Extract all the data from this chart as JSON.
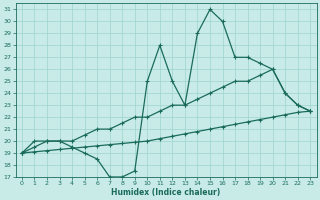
{
  "xlabel": "Humidex (Indice chaleur)",
  "bg_color": "#c8ebe8",
  "grid_color": "#9dd4cf",
  "line_color": "#1a6b5a",
  "x_hours": [
    0,
    1,
    2,
    3,
    4,
    5,
    6,
    7,
    8,
    9,
    10,
    11,
    12,
    13,
    14,
    15,
    16,
    17,
    18,
    19,
    20,
    21,
    22,
    23
  ],
  "humidex": [
    19,
    20,
    20,
    20,
    19.5,
    19,
    18.5,
    17,
    17,
    17.5,
    25,
    28,
    25,
    23,
    29,
    31,
    30,
    27,
    27,
    26.5,
    26,
    24,
    23,
    22.5
  ],
  "upper_line": [
    19,
    19.5,
    20,
    20,
    20,
    20.5,
    21,
    21,
    21.5,
    22,
    22,
    22.5,
    23,
    23,
    23.5,
    24,
    24.5,
    25,
    25,
    25.5,
    26,
    24,
    23,
    22.5
  ],
  "lower_line": [
    19,
    19.1,
    19.2,
    19.3,
    19.4,
    19.5,
    19.6,
    19.7,
    19.8,
    19.9,
    20.0,
    20.2,
    20.4,
    20.6,
    20.8,
    21.0,
    21.2,
    21.4,
    21.6,
    21.8,
    22.0,
    22.2,
    22.4,
    22.5
  ],
  "ylim": [
    17,
    31.5
  ],
  "xlim": [
    -0.5,
    23.5
  ],
  "yticks": [
    17,
    18,
    19,
    20,
    21,
    22,
    23,
    24,
    25,
    26,
    27,
    28,
    29,
    30,
    31
  ],
  "xticks": [
    0,
    1,
    2,
    3,
    4,
    5,
    6,
    7,
    8,
    9,
    10,
    11,
    12,
    13,
    14,
    15,
    16,
    17,
    18,
    19,
    20,
    21,
    22,
    23
  ]
}
